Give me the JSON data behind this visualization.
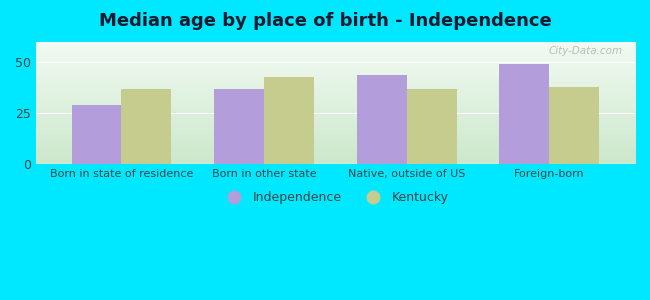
{
  "title": "Median age by place of birth - Independence",
  "categories": [
    "Born in state of residence",
    "Born in other state",
    "Native, outside of US",
    "Foreign-born"
  ],
  "independence_values": [
    29,
    37,
    44,
    49
  ],
  "kentucky_values": [
    37,
    43,
    37,
    38
  ],
  "independence_color": "#b39ddb",
  "kentucky_color": "#c5cc8e",
  "bar_width": 0.35,
  "ylim": [
    0,
    60
  ],
  "yticks": [
    0,
    25,
    50
  ],
  "background_outer": "#00e8ff",
  "title_fontsize": 13,
  "title_color": "#1a1a2e",
  "legend_labels": [
    "Independence",
    "Kentucky"
  ],
  "watermark": "City-Data.com",
  "grad_top": "#f2faf2",
  "grad_bottom": "#cce8cc",
  "tick_color": "#444444",
  "grid_color": "#ffffff"
}
